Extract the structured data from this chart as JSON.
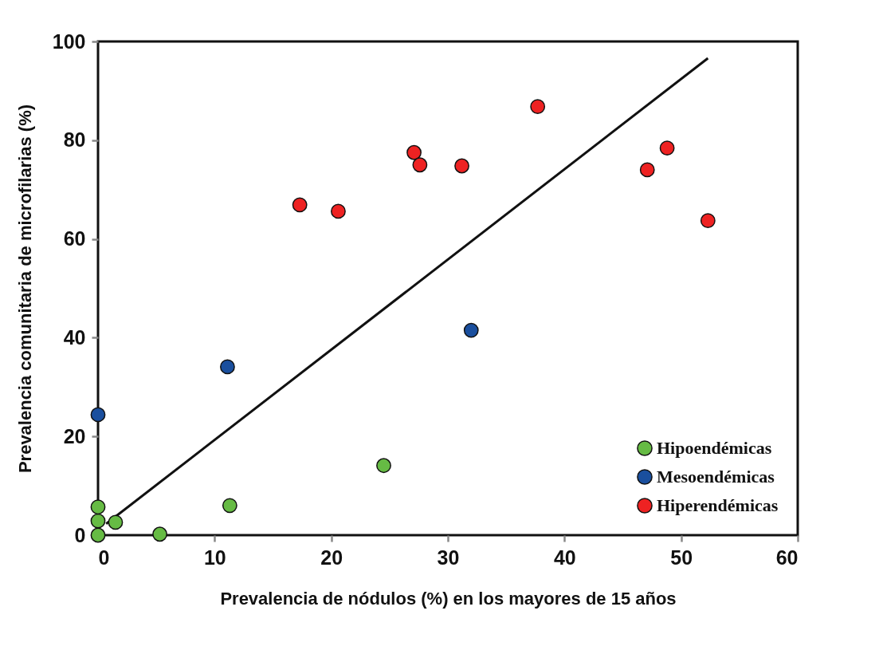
{
  "chart_data": {
    "type": "scatter",
    "xlabel": "Prevalencia de nódulos (%) en los mayores de 15 años",
    "ylabel": "Prevalencia comunitaria de microfilarias (%)",
    "xlim": [
      0,
      60
    ],
    "xticks": [
      0,
      10,
      20,
      30,
      40,
      50,
      60
    ],
    "ylim": [
      0,
      100
    ],
    "yticks": [
      0,
      20,
      40,
      60,
      80,
      100
    ],
    "grid": false,
    "legend": "bottom right",
    "marker": "circle",
    "series": [
      {
        "name": "Hipoendémicas",
        "color": "#66bb44",
        "x": [
          0,
          0,
          0,
          1.5,
          5.3,
          11.3,
          24.5
        ],
        "values": [
          0,
          2.9,
          5.7,
          2.6,
          0.2,
          6.0,
          14.1
        ]
      },
      {
        "name": "Mesoendémicas",
        "color": "#1a4f9e",
        "x": [
          0,
          11.1,
          32.0
        ],
        "values": [
          24.4,
          34.1,
          41.5
        ]
      },
      {
        "name": "Hiperendémicas",
        "color": "#ee2222",
        "x": [
          17.3,
          20.6,
          27.1,
          27.6,
          31.2,
          37.7,
          47.1,
          48.8,
          52.3
        ],
        "values": [
          66.9,
          65.6,
          77.5,
          75.0,
          74.8,
          86.8,
          74.0,
          78.4,
          63.7
        ]
      },
      {
        "type": "line",
        "color": "#111111",
        "line_style": "solid",
        "marker": "none",
        "x": [
          0.7,
          52.3
        ],
        "values": [
          2.3,
          96.6
        ]
      }
    ]
  }
}
